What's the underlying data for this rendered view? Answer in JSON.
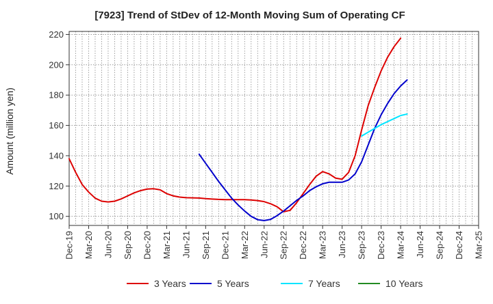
{
  "chart_data": {
    "type": "line",
    "title": "[7923]  Trend of StDev of 12-Month Moving Sum of Operating CF",
    "ylabel": "Amount (million yen)",
    "xlabel": "",
    "ylim": [
      94,
      222
    ],
    "yticks": [
      100,
      120,
      140,
      160,
      180,
      200,
      220
    ],
    "x_tick_labels": [
      "Dec-19",
      "Mar-20",
      "Jun-20",
      "Sep-20",
      "Dec-20",
      "Mar-21",
      "Jun-21",
      "Sep-21",
      "Dec-21",
      "Mar-22",
      "Jun-22",
      "Sep-22",
      "Dec-22",
      "Mar-23",
      "Jun-23",
      "Sep-23",
      "Dec-23",
      "Mar-24",
      "Jun-24",
      "Sep-24",
      "Dec-24",
      "Mar-25"
    ],
    "x_start": "Dec-19",
    "x_end": "Mar-25",
    "grid": true,
    "legend_position": "bottom",
    "series": [
      {
        "name": "3 Years",
        "color": "#dd0000",
        "points": [
          [
            "Dec-19",
            138
          ],
          [
            "Jan-20",
            129
          ],
          [
            "Feb-20",
            121
          ],
          [
            "Mar-20",
            116
          ],
          [
            "Apr-20",
            112
          ],
          [
            "May-20",
            110
          ],
          [
            "Jun-20",
            109.5
          ],
          [
            "Jul-20",
            110
          ],
          [
            "Aug-20",
            111.5
          ],
          [
            "Sep-20",
            113.5
          ],
          [
            "Oct-20",
            115.5
          ],
          [
            "Nov-20",
            117
          ],
          [
            "Dec-20",
            118
          ],
          [
            "Jan-21",
            118.2
          ],
          [
            "Feb-21",
            117.5
          ],
          [
            "Mar-21",
            115
          ],
          [
            "Apr-21",
            113.5
          ],
          [
            "May-21",
            112.7
          ],
          [
            "Jun-21",
            112.3
          ],
          [
            "Jul-21",
            112.2
          ],
          [
            "Aug-21",
            112.1
          ],
          [
            "Sep-21",
            111.7
          ],
          [
            "Oct-21",
            111.4
          ],
          [
            "Nov-21",
            111.2
          ],
          [
            "Dec-21",
            111
          ],
          [
            "Jan-22",
            111
          ],
          [
            "Feb-22",
            111
          ],
          [
            "Mar-22",
            111
          ],
          [
            "Apr-22",
            110.8
          ],
          [
            "May-22",
            110.4
          ],
          [
            "Jun-22",
            109.7
          ],
          [
            "Jul-22",
            108.3
          ],
          [
            "Aug-22",
            106.3
          ],
          [
            "Sep-22",
            103
          ],
          [
            "Oct-22",
            104
          ],
          [
            "Nov-22",
            109
          ],
          [
            "Dec-22",
            115
          ],
          [
            "Jan-23",
            121
          ],
          [
            "Feb-23",
            126.5
          ],
          [
            "Mar-23",
            129.5
          ],
          [
            "Apr-23",
            128
          ],
          [
            "May-23",
            125.2
          ],
          [
            "Jun-23",
            124.5
          ],
          [
            "Jul-23",
            129
          ],
          [
            "Aug-23",
            140
          ],
          [
            "Sep-23",
            157
          ],
          [
            "Oct-23",
            173
          ],
          [
            "Nov-23",
            185
          ],
          [
            "Dec-23",
            196
          ],
          [
            "Jan-24",
            205
          ],
          [
            "Feb-24",
            212
          ],
          [
            "Mar-24",
            217.5
          ]
        ]
      },
      {
        "name": "5 Years",
        "color": "#0000cc",
        "points": [
          [
            "Aug-21",
            141
          ],
          [
            "Sep-21",
            135
          ],
          [
            "Oct-21",
            129
          ],
          [
            "Nov-21",
            123
          ],
          [
            "Dec-21",
            117.5
          ],
          [
            "Jan-22",
            112
          ],
          [
            "Feb-22",
            107.5
          ],
          [
            "Mar-22",
            103.5
          ],
          [
            "Apr-22",
            100
          ],
          [
            "May-22",
            97.8
          ],
          [
            "Jun-22",
            97.2
          ],
          [
            "Jul-22",
            98
          ],
          [
            "Aug-22",
            100.5
          ],
          [
            "Sep-22",
            103.5
          ],
          [
            "Oct-22",
            107
          ],
          [
            "Nov-22",
            110.5
          ],
          [
            "Dec-22",
            113.5
          ],
          [
            "Jan-23",
            117
          ],
          [
            "Feb-23",
            119.5
          ],
          [
            "Mar-23",
            121.5
          ],
          [
            "Apr-23",
            122.5
          ],
          [
            "May-23",
            122.5
          ],
          [
            "Jun-23",
            122.5
          ],
          [
            "Jul-23",
            124
          ],
          [
            "Aug-23",
            128
          ],
          [
            "Sep-23",
            136
          ],
          [
            "Oct-23",
            147
          ],
          [
            "Nov-23",
            158
          ],
          [
            "Dec-23",
            167
          ],
          [
            "Jan-24",
            174.5
          ],
          [
            "Feb-24",
            181
          ],
          [
            "Mar-24",
            186
          ],
          [
            "Apr-24",
            190
          ]
        ]
      },
      {
        "name": "7 Years",
        "color": "#00e5ff",
        "points": [
          [
            "Sep-23",
            153
          ],
          [
            "Oct-23",
            155.5
          ],
          [
            "Nov-23",
            158
          ],
          [
            "Dec-23",
            160.5
          ],
          [
            "Jan-24",
            162.5
          ],
          [
            "Feb-24",
            164.5
          ],
          [
            "Mar-24",
            166.5
          ],
          [
            "Apr-24",
            167.5
          ]
        ]
      },
      {
        "name": "10 Years",
        "color": "#228b22",
        "points": []
      }
    ]
  }
}
